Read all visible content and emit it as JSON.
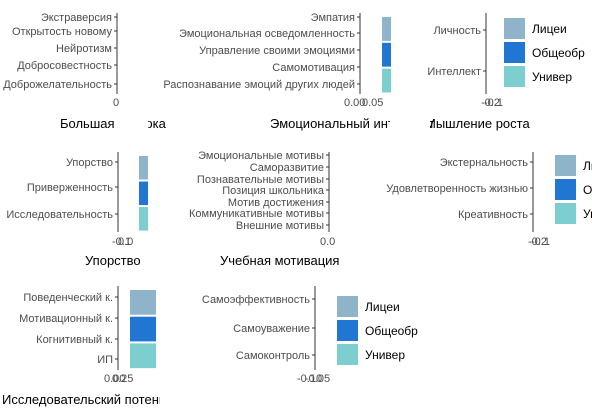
{
  "colors": {
    "Лицеи": "#8fb3c9",
    "Общеобр": "#2176d2",
    "Универ": "#7ccfce"
  },
  "legend_items": [
    "Лицеи",
    "Общеобр",
    "Универ"
  ],
  "chart_data": [
    {
      "type": "bar",
      "title": "Большая пятёрка",
      "categories": [
        "Экстраверсия",
        "Открытость новому",
        "Нейротизм",
        "Добросовестность",
        "Доброжелательность"
      ],
      "series": [],
      "xticks": [
        "0"
      ]
    },
    {
      "type": "bar",
      "title": "Эмоциональный интеллект",
      "categories": [
        "Эмпатия",
        "Эмоциональная осведомленность",
        "Управление своими эмоциями",
        "Самомотивация",
        "Распознавание эмоций других людей"
      ],
      "series": [],
      "xticks": [
        "0.00",
        "0.05"
      ]
    },
    {
      "type": "bar",
      "title": "Мышление роста",
      "categories": [
        "Личность",
        "Интеллект"
      ],
      "series": [],
      "xticks": [
        "-0.2",
        "-0.1"
      ],
      "legend": [
        "Лицеи",
        "Общеобр",
        "Универ"
      ]
    },
    {
      "type": "bar",
      "title": "Упорство",
      "categories": [
        "Упорство",
        "Приверженность",
        "Исследовательность"
      ],
      "series": [],
      "xticks": [
        "-0.1",
        "0.0"
      ]
    },
    {
      "type": "bar",
      "title": "Учебная мотивация",
      "categories": [
        "Эмоциональные мотивы",
        "Саморазвитие",
        "Познавательные мотивы",
        "Позиция школьника",
        "Мотив достижения",
        "Коммуникативные мотивы",
        "Внешние мотивы"
      ],
      "series": [],
      "xticks": [
        "0.0"
      ]
    },
    {
      "type": "bar",
      "title": "",
      "categories": [
        "Экстернальность",
        "Удовлетворенность жизнью",
        "Креативность"
      ],
      "series": [],
      "xticks": [
        "-0.2",
        "-0.1"
      ],
      "legend": [
        "Лицеи",
        "Общеобр",
        "Универ"
      ]
    },
    {
      "type": "bar",
      "title": "Исследовательский потенциал",
      "categories": [
        "Поведенческий к.",
        "Мотивационный к.",
        "Когнитивный к.",
        "ИП"
      ],
      "series": [],
      "xticks": [
        "0.00",
        "0.25"
      ]
    },
    {
      "type": "bar",
      "title": "",
      "categories": [
        "Самоэффективность",
        "Самоуважение",
        "Самоконтроль"
      ],
      "series": [],
      "xticks": [
        "-0.10",
        "-0.05"
      ],
      "legend": [
        "Лицеи",
        "Общеобр",
        "Универ"
      ]
    }
  ]
}
